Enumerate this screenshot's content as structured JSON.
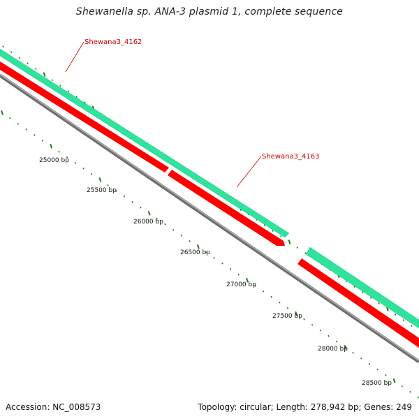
{
  "title": "Shewanella sp. ANA-3 plasmid 1, complete sequence",
  "footer": {
    "accession": "Accession: NC_008573",
    "summary": "Topology: circular; Length: 278,942 bp; Genes: 249"
  },
  "colors": {
    "forward_cds": "#33e6a0",
    "reverse_cds": "#ff0000",
    "backbone": "#8a8a8a",
    "tick": "#1f7a1f",
    "gene_label": "#d00000"
  },
  "genes": [
    {
      "name": "Shewana3_4162",
      "strand": "forward"
    },
    {
      "name": "Shewana3_4163",
      "strand": "forward"
    }
  ],
  "bp_ticks": [
    "25000 bp",
    "25500 bp",
    "26000 bp",
    "26500 bp",
    "27000 bp",
    "27500 bp",
    "28000 bp",
    "28500 bp"
  ]
}
